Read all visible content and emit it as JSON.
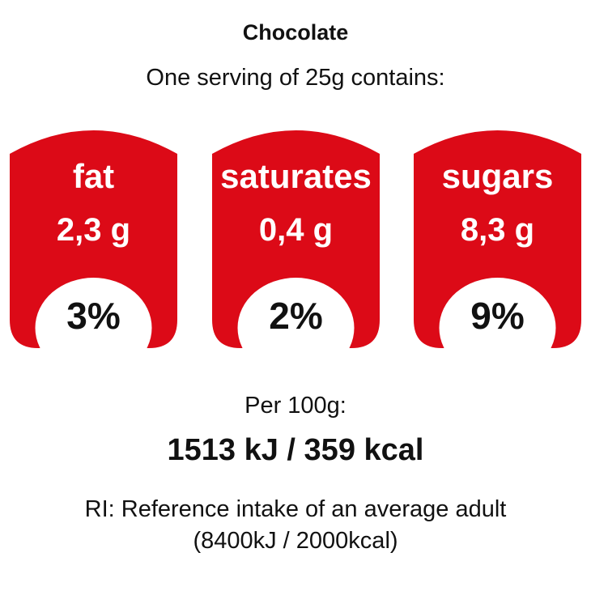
{
  "header": {
    "product_name": "Chocolate",
    "serving_text": "One serving of 25g contains:"
  },
  "colors": {
    "badge_red": "#dc0a17",
    "text_dark": "#111111",
    "background": "#ffffff"
  },
  "nutrients": [
    {
      "name": "fat",
      "amount": "2,3 g",
      "percent": "3%"
    },
    {
      "name": "saturates",
      "amount": "0,4 g",
      "percent": "2%"
    },
    {
      "name": "sugars",
      "amount": "8,3 g",
      "percent": "9%"
    }
  ],
  "energy": {
    "per_label": "Per 100g:",
    "value": "1513 kJ / 359 kcal"
  },
  "reference": {
    "line1": "RI: Reference intake of an average adult",
    "line2": "(8400kJ / 2000kcal)"
  }
}
